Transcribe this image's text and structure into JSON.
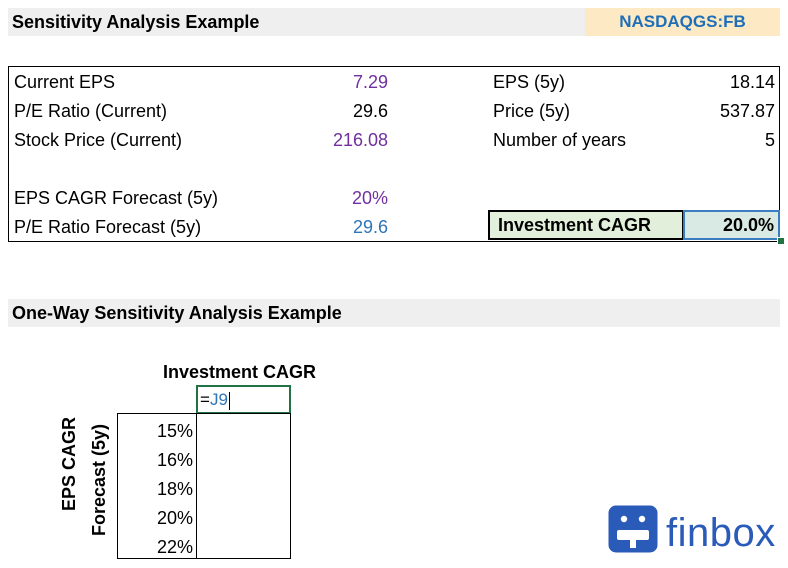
{
  "header": {
    "title": "Sensitivity Analysis Example",
    "ticker": "NASDAQGS:FB"
  },
  "inputs": {
    "current_eps_label": "Current EPS",
    "current_eps_value": "7.29",
    "pe_ratio_label": "P/E Ratio (Current)",
    "pe_ratio_value": "29.6",
    "stock_price_label": "Stock Price (Current)",
    "stock_price_value": "216.08",
    "eps_cagr_label": "EPS CAGR Forecast (5y)",
    "eps_cagr_value": "20%",
    "pe_forecast_label": "P/E Ratio Forecast (5y)",
    "pe_forecast_value": "29.6",
    "eps_5y_label": "EPS (5y)",
    "eps_5y_value": "18.14",
    "price_5y_label": "Price (5y)",
    "price_5y_value": "537.87",
    "years_label": "Number of years",
    "years_value": "5",
    "investment_cagr_label": "Investment CAGR",
    "investment_cagr_value": "20.0%"
  },
  "sensitivity": {
    "section_title": "One-Way Sensitivity Analysis Example",
    "column_title": "Investment CAGR",
    "formula_eq": "=",
    "formula_ref": "J9",
    "row_axis_line1": "EPS CAGR",
    "row_axis_line2": "Forecast (5y)",
    "rows": [
      "15%",
      "16%",
      "18%",
      "20%",
      "22%"
    ]
  },
  "brand": {
    "name": "finbox",
    "color": "#2b5bb8"
  }
}
